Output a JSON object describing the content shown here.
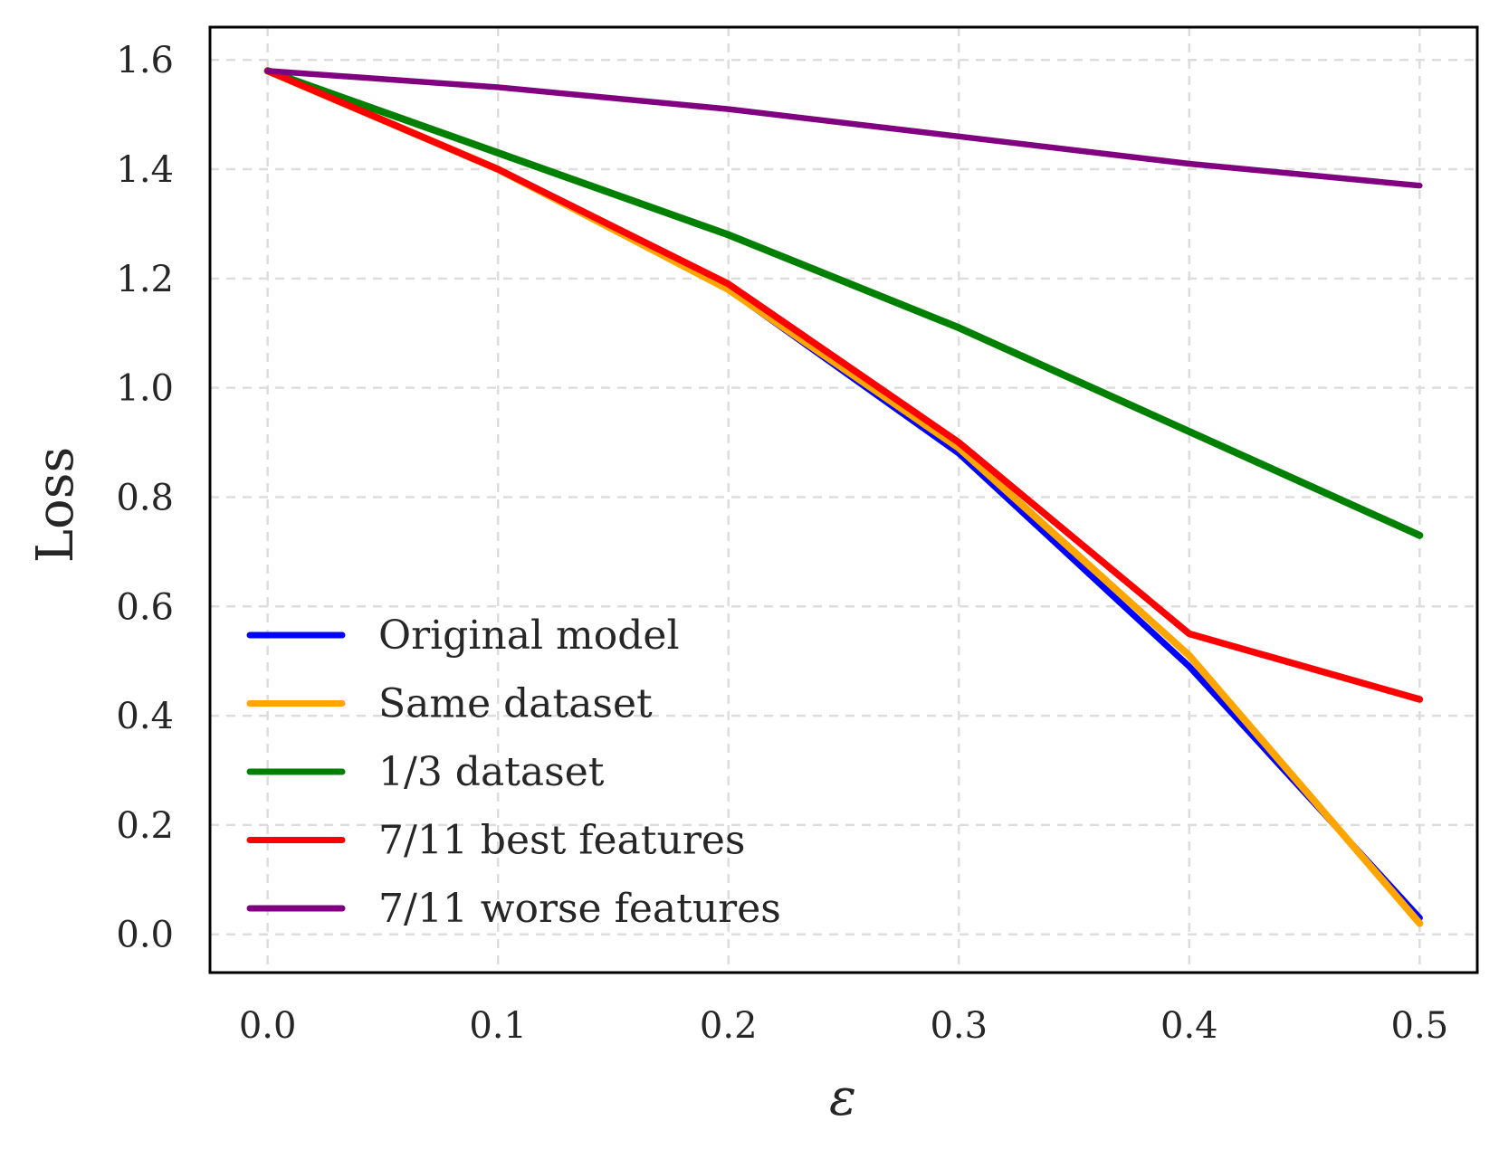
{
  "chart_data": {
    "type": "line",
    "title": "",
    "xlabel": "ε",
    "ylabel": "Loss",
    "x": [
      0.0,
      0.1,
      0.2,
      0.3,
      0.4,
      0.5
    ],
    "xlim": [
      -0.025,
      0.525
    ],
    "ylim": [
      -0.07,
      1.66
    ],
    "x_ticks": [
      "0.0",
      "0.1",
      "0.2",
      "0.3",
      "0.4",
      "0.5"
    ],
    "y_ticks": [
      "0.0",
      "0.2",
      "0.4",
      "0.6",
      "0.8",
      "1.0",
      "1.2",
      "1.4",
      "1.6"
    ],
    "grid": true,
    "legend_position": "lower-left",
    "series": [
      {
        "name": "Original model",
        "color": "#0000ff",
        "values": [
          1.58,
          1.4,
          1.18,
          0.88,
          0.49,
          0.03
        ]
      },
      {
        "name": "Same dataset",
        "color": "#ffa500",
        "values": [
          1.58,
          1.4,
          1.18,
          0.89,
          0.51,
          0.02
        ]
      },
      {
        "name": "1/3 dataset",
        "color": "#008000",
        "values": [
          1.58,
          1.43,
          1.28,
          1.11,
          0.92,
          0.73
        ]
      },
      {
        "name": "7/11 best features",
        "color": "#ff0000",
        "values": [
          1.58,
          1.4,
          1.19,
          0.9,
          0.55,
          0.43
        ]
      },
      {
        "name": "7/11 worse features",
        "color": "#800080",
        "values": [
          1.58,
          1.55,
          1.51,
          1.46,
          1.41,
          1.37
        ]
      }
    ]
  }
}
